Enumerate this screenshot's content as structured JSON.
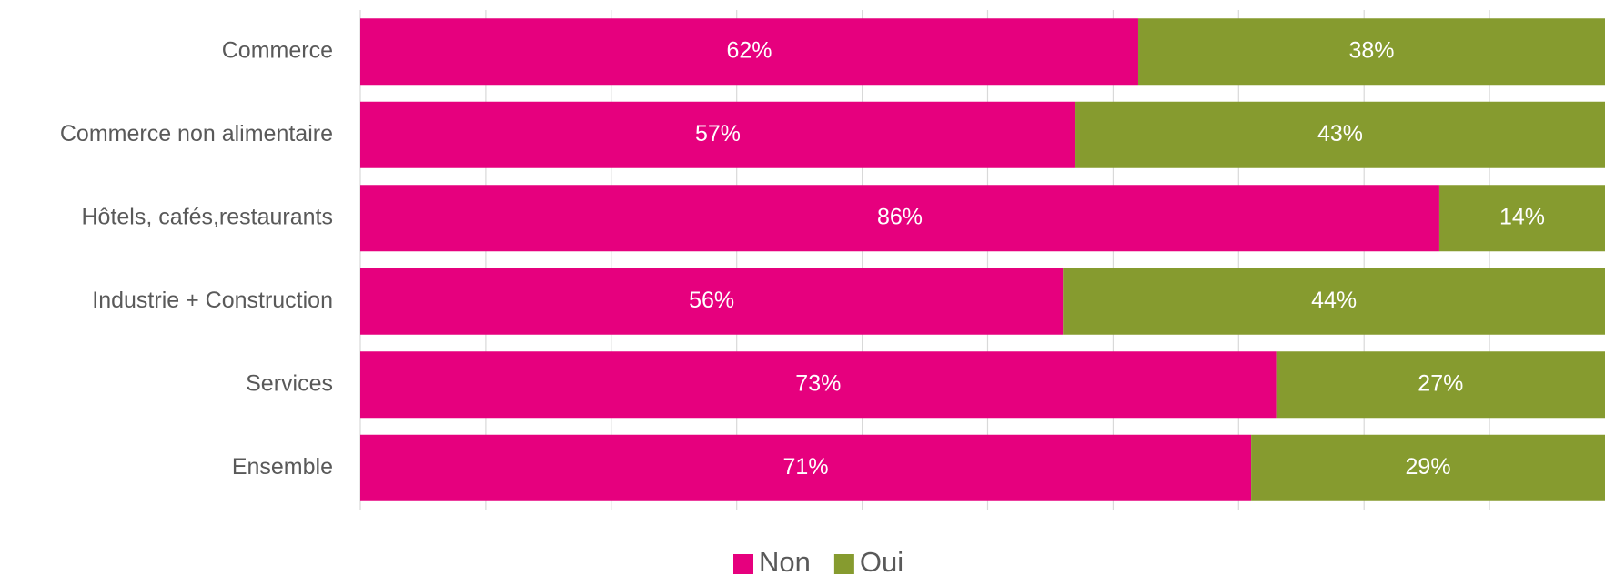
{
  "chart_data": {
    "type": "stacked_barh",
    "categories": [
      "Commerce",
      "Commerce non alimentaire",
      "Hôtels, cafés,restaurants",
      "Industrie + Construction",
      "Services",
      "Ensemble"
    ],
    "series": [
      {
        "name": "Non",
        "color": "#e6007e",
        "values": [
          62,
          57,
          86,
          56,
          73,
          71
        ],
        "value_labels": [
          "62%",
          "57%",
          "86%",
          "56%",
          "73%",
          "71%"
        ]
      },
      {
        "name": "Oui",
        "color": "#869b2f",
        "values": [
          38,
          43,
          14,
          44,
          27,
          29
        ],
        "value_labels": [
          "38%",
          "43%",
          "14%",
          "44%",
          "27%",
          "29%"
        ]
      }
    ],
    "xlim": [
      0,
      100
    ],
    "xticks": [
      0,
      10,
      20,
      30,
      40,
      50,
      60,
      70,
      80,
      90,
      100
    ],
    "grid": true,
    "legend": "bottom"
  }
}
